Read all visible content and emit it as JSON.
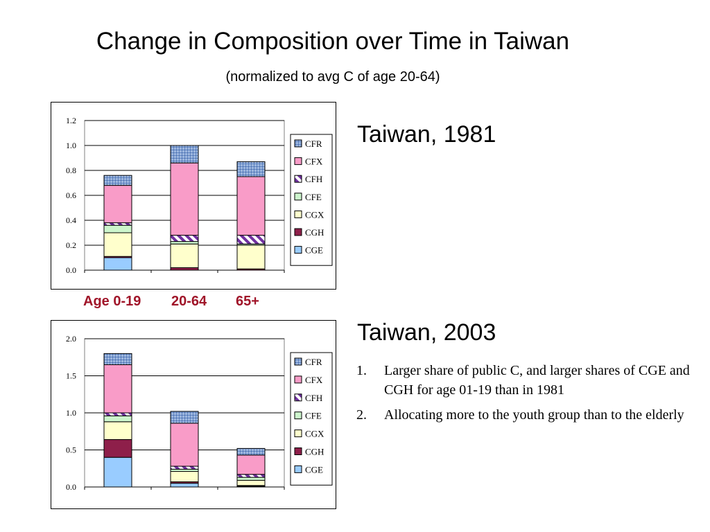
{
  "title": "Change in Composition over Time in Taiwan",
  "subtitle": "(normalized to avg C of age 20-64)",
  "age_labels": [
    "Age 0-19",
    "20-64",
    "65+"
  ],
  "panels": [
    {
      "heading": "Taiwan, 1981"
    },
    {
      "heading": "Taiwan, 2003"
    }
  ],
  "notes": [
    {
      "number": "1.",
      "text": "Larger share of public C, and larger shares of CGE and CGH for age 01-19 than in 1981"
    },
    {
      "number": "2.",
      "text": "Allocating more to the youth group than to the elderly"
    }
  ],
  "colors": {
    "CFR": "#7f9fd2",
    "CFX": "#f99cc8",
    "CFH": "#7030a0",
    "CFE": "#ccf5cc",
    "CGX": "#ffffcc",
    "CGH": "#8e1f4a",
    "CGE": "#99ccff",
    "age_label": "#a01529"
  },
  "chart_data": [
    {
      "type": "bar",
      "stacked": true,
      "title": "",
      "xlabel": "",
      "ylabel": "",
      "categories": [
        "Age 0-19",
        "20-64",
        "65+"
      ],
      "ylim": [
        0,
        1.2
      ],
      "yticks": [
        "0.0",
        "0.2",
        "0.4",
        "0.6",
        "0.8",
        "1.0",
        "1.2"
      ],
      "grid": true,
      "legend": "right",
      "series": [
        {
          "name": "CGE",
          "values": [
            0.1,
            0.0,
            0.0
          ]
        },
        {
          "name": "CGH",
          "values": [
            0.01,
            0.02,
            0.01
          ]
        },
        {
          "name": "CGX",
          "values": [
            0.19,
            0.19,
            0.19
          ]
        },
        {
          "name": "CFE",
          "values": [
            0.06,
            0.02,
            0.01
          ]
        },
        {
          "name": "CFH",
          "values": [
            0.02,
            0.05,
            0.07
          ]
        },
        {
          "name": "CFX",
          "values": [
            0.3,
            0.58,
            0.47
          ]
        },
        {
          "name": "CFR",
          "values": [
            0.08,
            0.14,
            0.12
          ]
        }
      ]
    },
    {
      "type": "bar",
      "stacked": true,
      "title": "",
      "xlabel": "",
      "ylabel": "",
      "categories": [
        "Age 0-19",
        "20-64",
        "65+"
      ],
      "ylim": [
        0,
        2.0
      ],
      "yticks": [
        "0.0",
        "0.5",
        "1.0",
        "1.5",
        "2.0"
      ],
      "grid": true,
      "legend": "right",
      "series": [
        {
          "name": "CGE",
          "values": [
            0.4,
            0.05,
            0.01
          ]
        },
        {
          "name": "CGH",
          "values": [
            0.24,
            0.02,
            0.01
          ]
        },
        {
          "name": "CGX",
          "values": [
            0.24,
            0.14,
            0.07
          ]
        },
        {
          "name": "CFE",
          "values": [
            0.08,
            0.03,
            0.04
          ]
        },
        {
          "name": "CFH",
          "values": [
            0.04,
            0.04,
            0.04
          ]
        },
        {
          "name": "CFX",
          "values": [
            0.65,
            0.58,
            0.26
          ]
        },
        {
          "name": "CFR",
          "values": [
            0.15,
            0.16,
            0.09
          ]
        }
      ]
    }
  ]
}
